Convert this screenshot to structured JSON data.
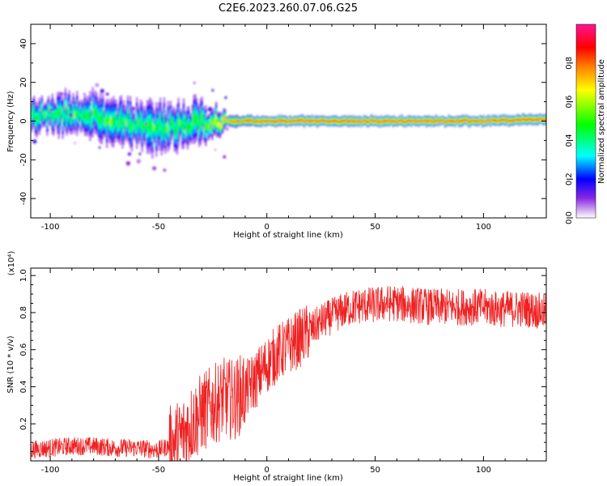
{
  "title": "C2E6.2023.260.07.06.G25",
  "chart_data": [
    {
      "type": "heatmap",
      "title": "C2E6.2023.260.07.06.G25",
      "xlabel": "Height of straight line (km)",
      "ylabel": "Frequency (Hz)",
      "xlim": [
        -109,
        129
      ],
      "ylim": [
        -50,
        50
      ],
      "xticks": [
        -100,
        -50,
        0,
        50,
        100
      ],
      "yticks": [
        -40,
        -20,
        0,
        20,
        40
      ],
      "colorbar": {
        "label": "Normalized spectral amplitude",
        "range": [
          0.0,
          1.0
        ],
        "ticks": [
          "0.0",
          "0.2",
          "0.4",
          "0.6",
          "0.8"
        ],
        "colors": [
          "#ffffff",
          "#8a2be2",
          "#0000ff",
          "#00ffff",
          "#00ff00",
          "#ffff00",
          "#ff8000",
          "#ff0000",
          "#ff1493"
        ]
      },
      "band": [
        {
          "x": -105,
          "center": 3,
          "width": 14,
          "amp": 0.45
        },
        {
          "x": -90,
          "center": 3,
          "width": 18,
          "amp": 0.45
        },
        {
          "x": -75,
          "center": 1,
          "width": 18,
          "amp": 0.45
        },
        {
          "x": -60,
          "center": -2,
          "width": 20,
          "amp": 0.45
        },
        {
          "x": -45,
          "center": -3,
          "width": 20,
          "amp": 0.45
        },
        {
          "x": -30,
          "center": -1,
          "width": 16,
          "amp": 0.5
        },
        {
          "x": -18,
          "center": 0,
          "width": 6,
          "amp": 0.75
        },
        {
          "x": 0,
          "center": 0,
          "width": 5,
          "amp": 0.85
        },
        {
          "x": 50,
          "center": 0,
          "width": 5,
          "amp": 0.85
        },
        {
          "x": 100,
          "center": 0,
          "width": 5,
          "amp": 0.85
        },
        {
          "x": 129,
          "center": 1,
          "width": 5,
          "amp": 0.85
        }
      ]
    },
    {
      "type": "line",
      "xlabel": "Height of straight line (km)",
      "ylabel": "SNR (10 * v/v)",
      "y_multiplier": "(x10⁴)",
      "xlim": [
        -109,
        129
      ],
      "ylim": [
        0.0,
        1.04
      ],
      "xticks": [
        -100,
        -50,
        0,
        50,
        100
      ],
      "yticks": [
        "0.2",
        "0.4",
        "0.6",
        "0.8",
        "1.0"
      ],
      "series": [
        {
          "color": "#ee2222",
          "x": [
            -109,
            -100,
            -90,
            -80,
            -70,
            -60,
            -50,
            -45,
            -40,
            -35,
            -30,
            -25,
            -20,
            -15,
            -10,
            -5,
            0,
            5,
            10,
            15,
            20,
            25,
            30,
            35,
            40,
            45,
            50,
            55,
            60,
            65,
            70,
            75,
            80,
            85,
            90,
            95,
            100,
            105,
            110,
            115,
            120,
            125,
            129
          ],
          "y": [
            0.06,
            0.07,
            0.08,
            0.08,
            0.07,
            0.07,
            0.06,
            0.08,
            0.12,
            0.2,
            0.26,
            0.3,
            0.34,
            0.33,
            0.38,
            0.44,
            0.52,
            0.58,
            0.62,
            0.66,
            0.7,
            0.75,
            0.78,
            0.81,
            0.83,
            0.84,
            0.84,
            0.85,
            0.85,
            0.84,
            0.84,
            0.83,
            0.83,
            0.83,
            0.83,
            0.83,
            0.83,
            0.82,
            0.82,
            0.82,
            0.82,
            0.81,
            0.8
          ]
        }
      ]
    }
  ]
}
